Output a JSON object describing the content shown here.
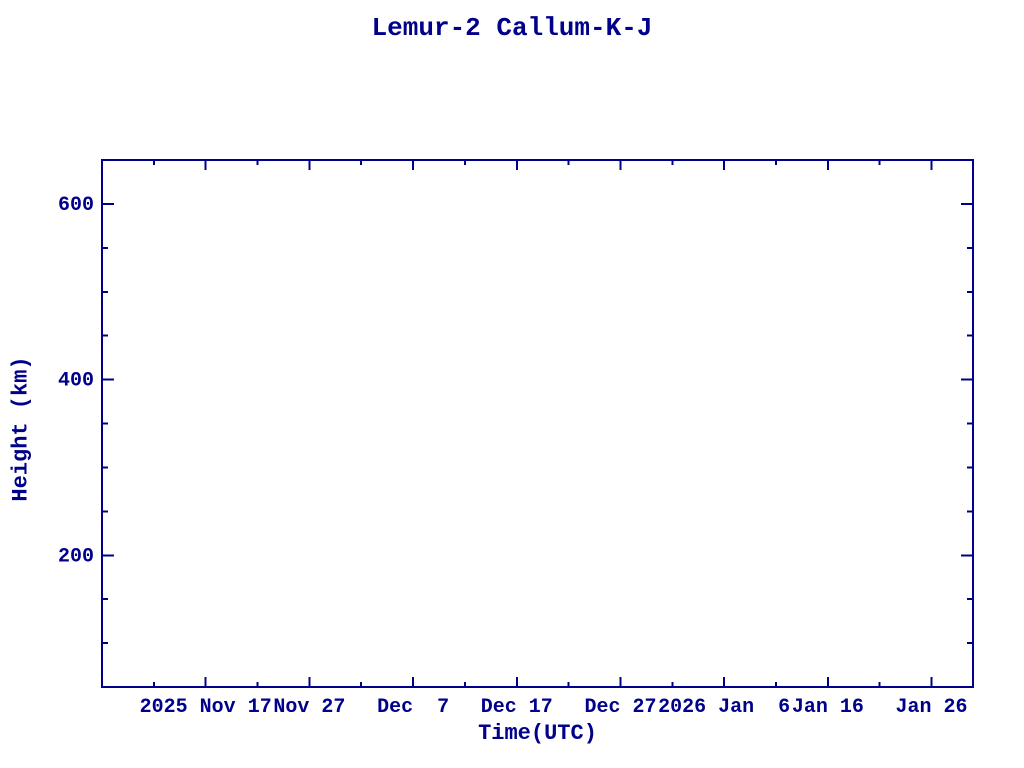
{
  "figure": {
    "background": "#ffffff"
  },
  "chart_data": {
    "type": "line",
    "title": "Lemur-2 Callum-K-J",
    "xlabel": "Time(UTC)",
    "ylabel": "Height (km)",
    "axis_color": "#00008B",
    "text_color": "#00008B",
    "grid": false,
    "legend": "none",
    "series": [],
    "x_axis": {
      "kind": "time",
      "span_days": 84,
      "minor_tick_step_days": 5,
      "major_ticks": [
        {
          "day": 10,
          "label": "2025 Nov 17"
        },
        {
          "day": 20,
          "label": "Nov 27"
        },
        {
          "day": 30,
          "label": "Dec  7"
        },
        {
          "day": 40,
          "label": "Dec 17"
        },
        {
          "day": 50,
          "label": "Dec 27"
        },
        {
          "day": 60,
          "label": "2026 Jan  6"
        },
        {
          "day": 70,
          "label": "Jan 16"
        },
        {
          "day": 80,
          "label": "Jan 26"
        }
      ]
    },
    "y_axis": {
      "min": 50,
      "max": 650,
      "minor_tick_step": 50,
      "major_ticks": [
        {
          "value": 200,
          "label": "200"
        },
        {
          "value": 400,
          "label": "400"
        },
        {
          "value": 600,
          "label": "600"
        }
      ]
    }
  }
}
